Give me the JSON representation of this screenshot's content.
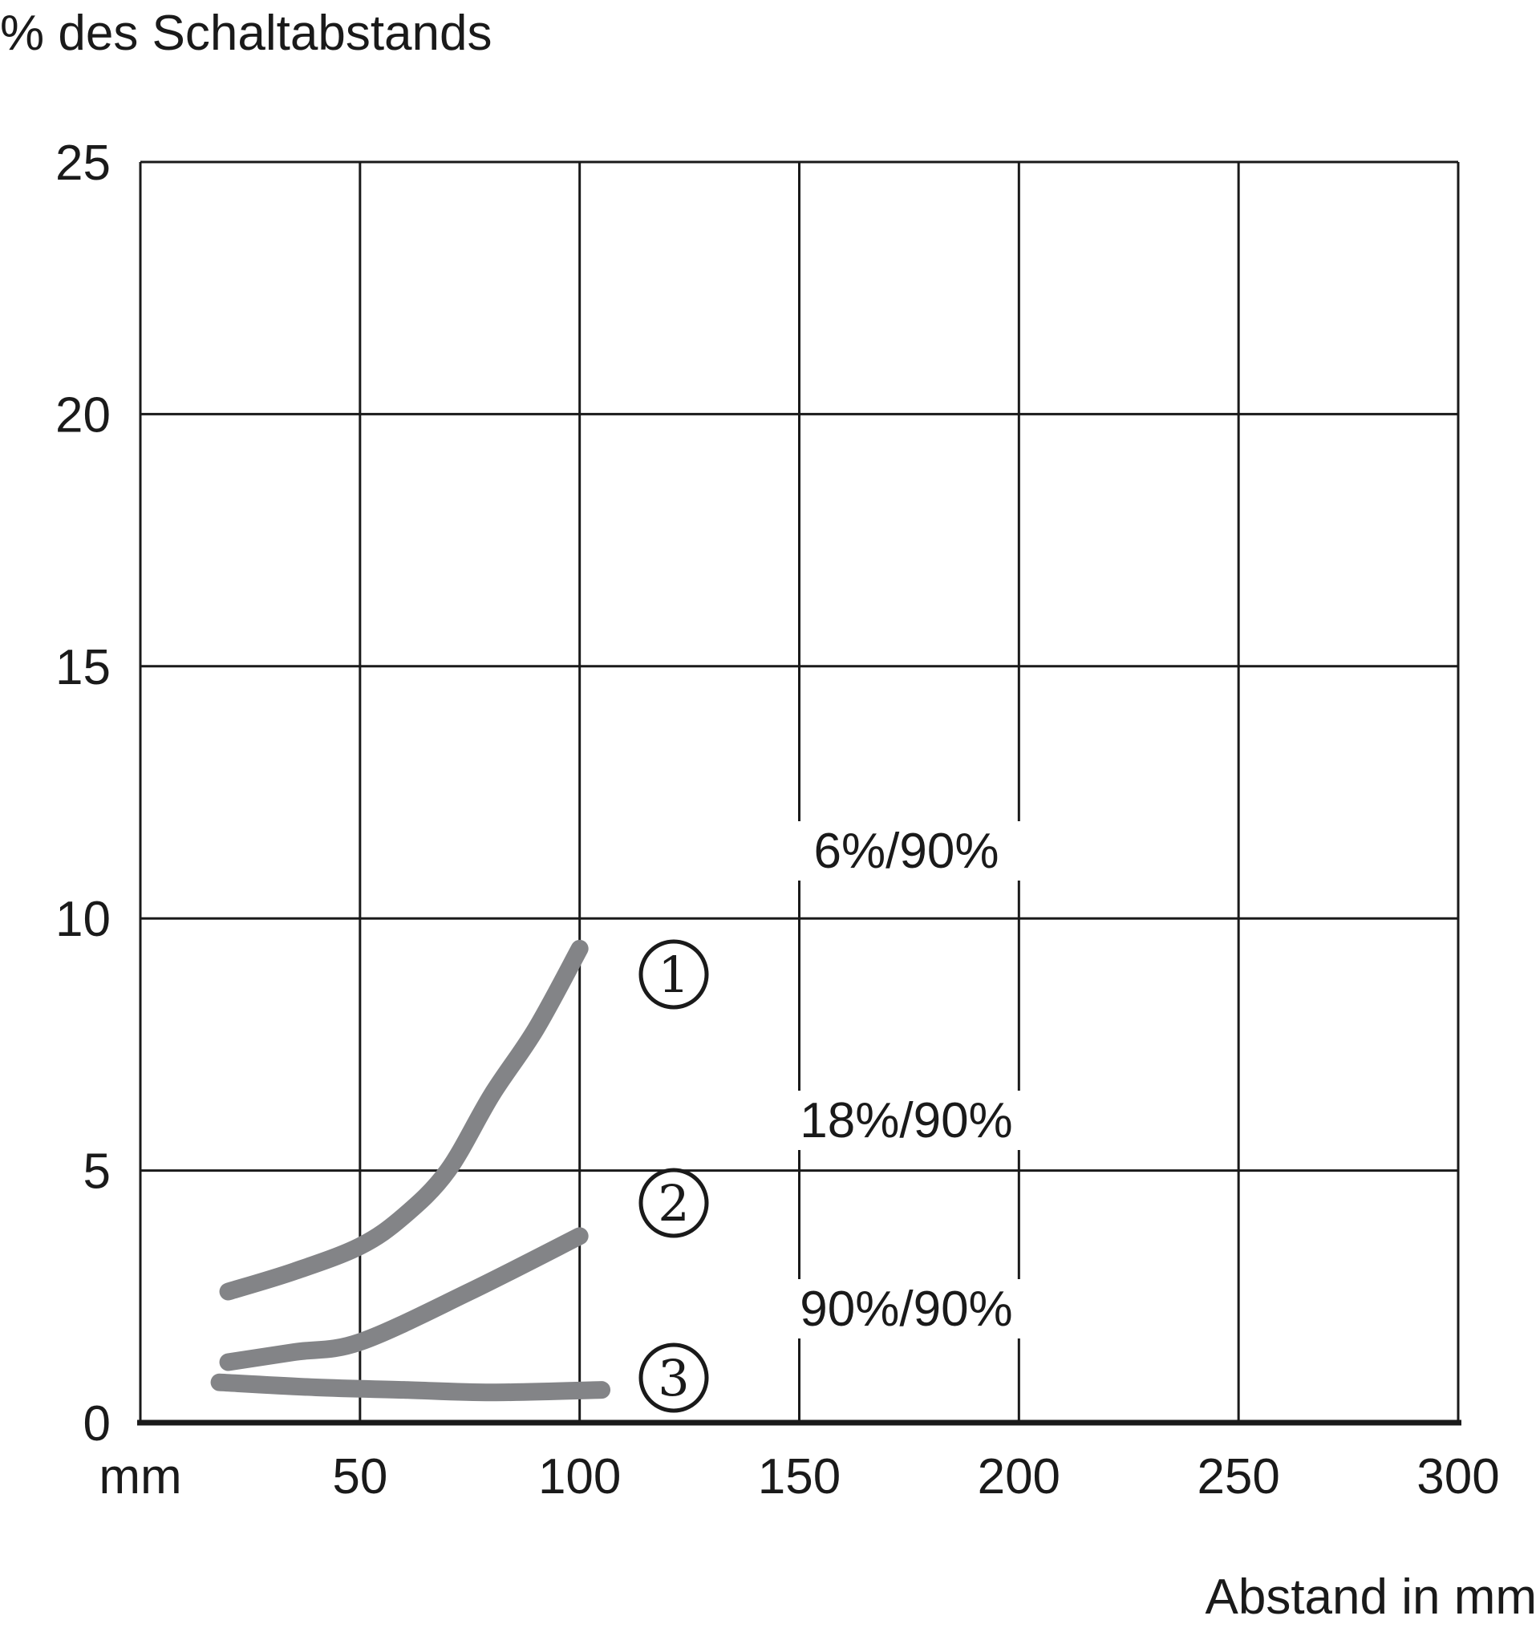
{
  "chart_data": {
    "type": "line",
    "ylabel": "% des Schaltabstands",
    "xlabel": "Abstand in mm",
    "x_unit_label": "mm",
    "xlim": [
      0,
      300
    ],
    "ylim": [
      0,
      25
    ],
    "x_ticks": [
      "50",
      "100",
      "150",
      "200",
      "250",
      "300"
    ],
    "y_ticks": [
      "0",
      "5",
      "10",
      "15",
      "20",
      "25"
    ],
    "grid": true,
    "color": "#838487",
    "series": [
      {
        "name": "6%/90%",
        "marker": "1",
        "x": [
          20,
          35,
          50,
          60,
          70,
          80,
          90,
          100
        ],
        "y": [
          2.6,
          3.0,
          3.5,
          4.1,
          5.0,
          6.5,
          7.8,
          9.4
        ]
      },
      {
        "name": "18%/90%",
        "marker": "2",
        "x": [
          20,
          35,
          50,
          75,
          100
        ],
        "y": [
          1.2,
          1.4,
          1.6,
          2.6,
          3.7
        ]
      },
      {
        "name": "90%/90%",
        "marker": "3",
        "x": [
          18,
          40,
          60,
          80,
          105
        ],
        "y": [
          0.8,
          0.7,
          0.65,
          0.6,
          0.65
        ]
      }
    ]
  }
}
